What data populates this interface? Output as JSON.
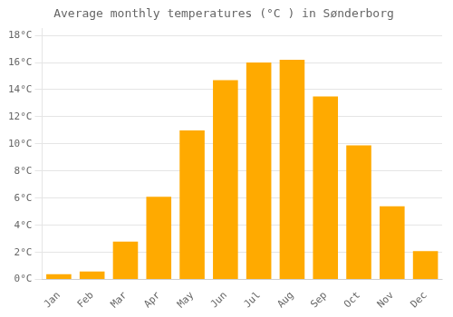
{
  "chart_data": {
    "type": "bar",
    "title": "Average monthly temperatures (°C ) in Sønderborg",
    "categories": [
      "Jan",
      "Feb",
      "Mar",
      "Apr",
      "May",
      "Jun",
      "Jul",
      "Aug",
      "Sep",
      "Oct",
      "Nov",
      "Dec"
    ],
    "values": [
      0.4,
      0.6,
      2.8,
      6.1,
      11.0,
      14.7,
      16.0,
      16.2,
      13.5,
      9.9,
      5.4,
      2.1
    ],
    "color": "#FFAA00",
    "ylim": [
      0,
      18.5
    ],
    "yticks": [
      {
        "value": 0,
        "label": "0°C"
      },
      {
        "value": 2,
        "label": "2°C"
      },
      {
        "value": 4,
        "label": "4°C"
      },
      {
        "value": 6,
        "label": "6°C"
      },
      {
        "value": 8,
        "label": "8°C"
      },
      {
        "value": 10,
        "label": "10°C"
      },
      {
        "value": 12,
        "label": "12°C"
      },
      {
        "value": 14,
        "label": "14°C"
      },
      {
        "value": 16,
        "label": "16°C"
      },
      {
        "value": 18,
        "label": "18°C"
      }
    ],
    "grid": true
  }
}
